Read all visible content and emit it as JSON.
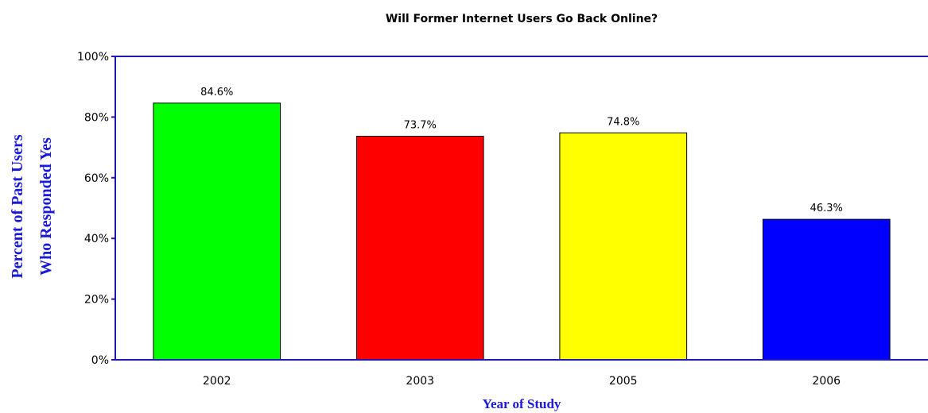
{
  "chart_data": {
    "type": "bar",
    "title": "Will Former Internet Users Go Back Online?",
    "xlabel": "Year of Study",
    "ylabel_lines": [
      "Percent of Past Users",
      "Who Responded Yes"
    ],
    "categories": [
      "2002",
      "2003",
      "2005",
      "2006"
    ],
    "values": [
      84.6,
      73.7,
      74.8,
      46.3
    ],
    "data_labels": [
      "84.6%",
      "73.7%",
      "74.8%",
      "46.3%"
    ],
    "bar_colors": [
      "#00ff00",
      "#ff0000",
      "#ffff00",
      "#0000ff"
    ],
    "ylim": [
      0,
      100
    ],
    "yticks": [
      0,
      20,
      40,
      60,
      80,
      100
    ],
    "ytick_labels": [
      "0%",
      "20%",
      "40%",
      "60%",
      "80%",
      "100%"
    ],
    "grid": false,
    "axis_color": "#1a1ab0",
    "axis_title_color": "#1a1ad6"
  }
}
